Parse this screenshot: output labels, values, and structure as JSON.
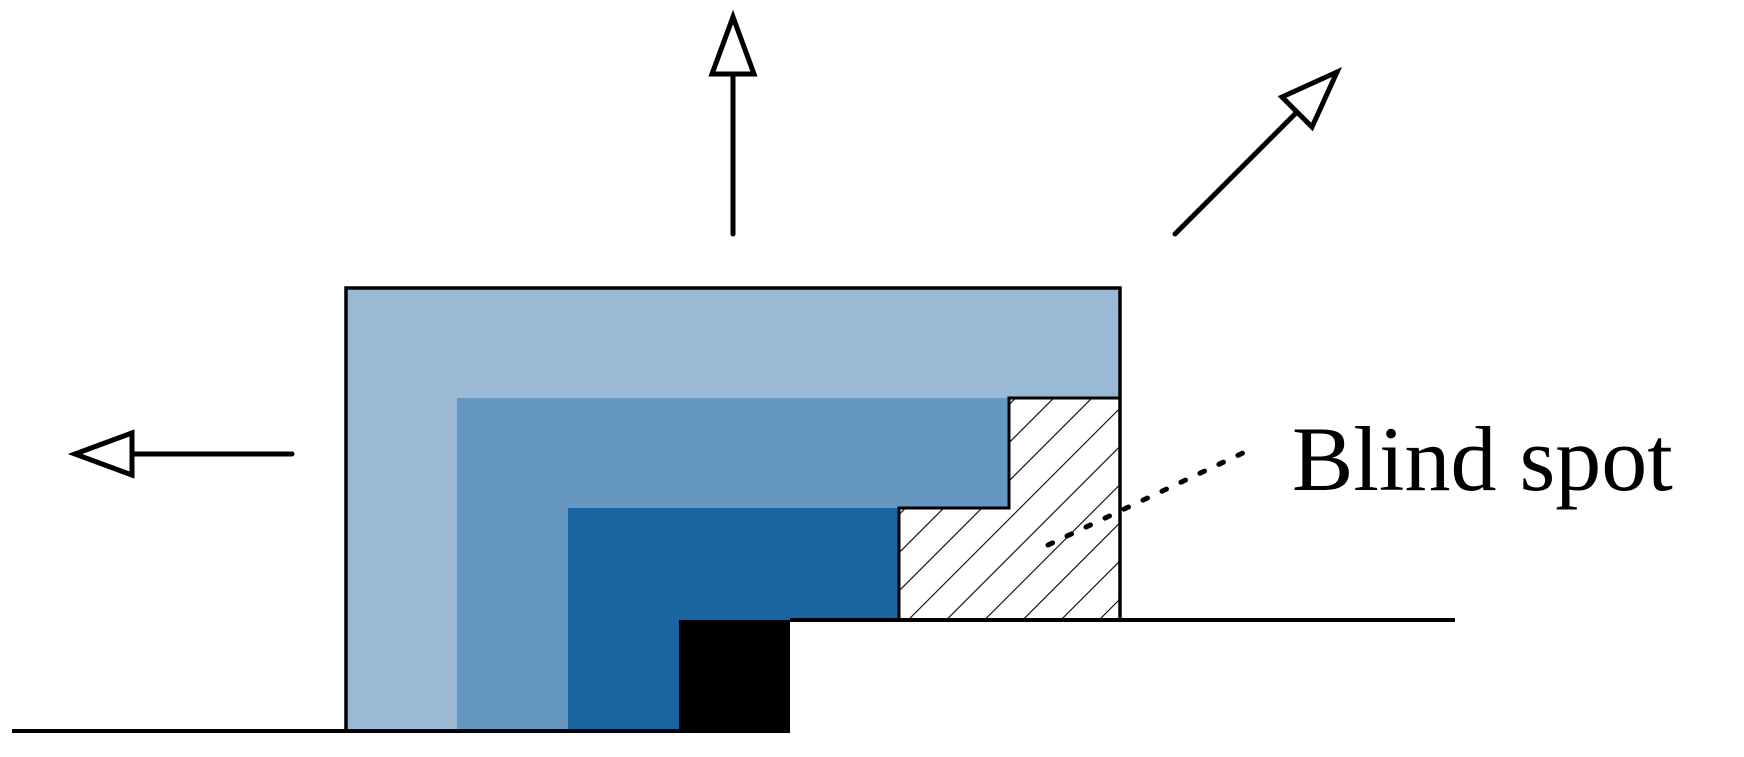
{
  "annotation": {
    "blind_spot_label": "Blind spot"
  },
  "colors": {
    "layer_outer": "#9ab9d4",
    "layer_middle": "#6697c0",
    "layer_inner": "#1965a0",
    "core": "#000000",
    "hatch": "#000000",
    "outline": "#000000"
  },
  "arrows": [
    {
      "name": "arrow-left",
      "direction": "left"
    },
    {
      "name": "arrow-up",
      "direction": "up"
    },
    {
      "name": "arrow-up-right",
      "direction": "up-right"
    }
  ]
}
